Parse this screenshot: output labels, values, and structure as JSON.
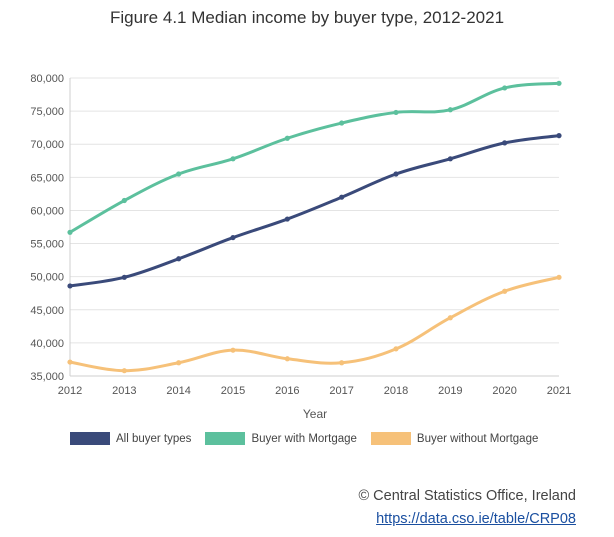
{
  "colors": {
    "all": "#3a4a7a",
    "mortgage": "#5cc09d",
    "nomortgage": "#f6c179",
    "grid": "#e4e4e4"
  },
  "credit": {
    "source": "© Central Statistics Office, Ireland",
    "link": "https://data.cso.ie/table/CRP08"
  },
  "chart_data": {
    "type": "line",
    "title": "Figure 4.1 Median income by buyer type, 2012-2021",
    "xlabel": "Year",
    "ylabel": "",
    "x": [
      "2012",
      "2013",
      "2014",
      "2015",
      "2016",
      "2017",
      "2018",
      "2019",
      "2020",
      "2021"
    ],
    "ylim": [
      35000,
      80000
    ],
    "yticks": [
      "35,000",
      "40,000",
      "45,000",
      "50,000",
      "55,000",
      "60,000",
      "65,000",
      "70,000",
      "75,000",
      "80,000"
    ],
    "grid": true,
    "legend_position": "bottom",
    "series": [
      {
        "name": "All buyer types",
        "color_key": "all",
        "values": [
          48600,
          49900,
          52700,
          55900,
          58700,
          62000,
          65500,
          67800,
          70200,
          71300
        ]
      },
      {
        "name": "Buyer with Mortgage",
        "color_key": "mortgage",
        "values": [
          56700,
          61500,
          65500,
          67800,
          70900,
          73200,
          74800,
          75200,
          78500,
          79200
        ]
      },
      {
        "name": "Buyer without Mortgage",
        "color_key": "nomortgage",
        "values": [
          37100,
          35800,
          37000,
          38900,
          37600,
          37000,
          39100,
          43800,
          47800,
          49900
        ]
      }
    ]
  }
}
